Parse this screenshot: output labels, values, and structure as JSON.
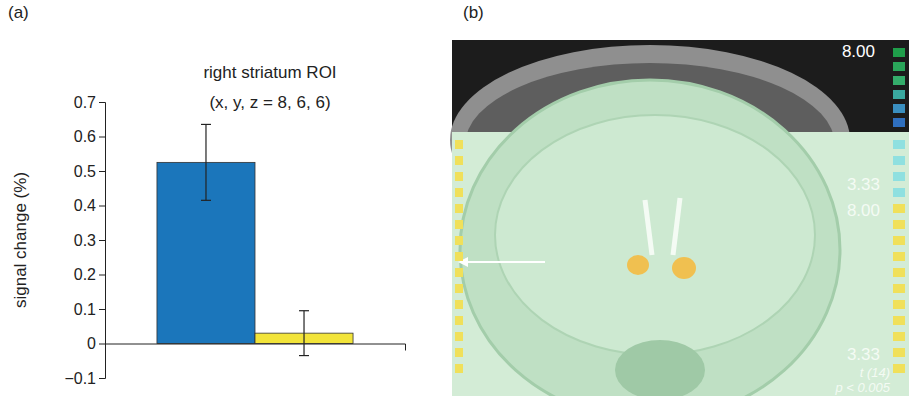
{
  "chart_data": [
    {
      "type": "bar",
      "title": "right striatum ROI",
      "subtitle": "(x, y, z = 8, 6, 6)",
      "y_label": "signal change (%)",
      "annotations": [
        "(a)"
      ],
      "categories": [
        null,
        null
      ],
      "values": [
        0.525,
        0.03
      ],
      "errors": [
        0.11,
        0.065
      ],
      "colors": [
        "#1b76bb",
        "#f2e43a"
      ],
      "ylim": [
        -0.1,
        0.7
      ],
      "yticks": [
        {
          "value": -0.1,
          "label": "−0.1"
        },
        0,
        0.1,
        0.2,
        0.3,
        0.4,
        0.5,
        0.6,
        0.7
      ],
      "grid": false
    },
    {
      "type": "image",
      "annotations": [
        "(b)",
        "8.00",
        "3.33",
        "8.00",
        "3.33",
        "t (14)",
        "p < 0.005"
      ]
    }
  ]
}
